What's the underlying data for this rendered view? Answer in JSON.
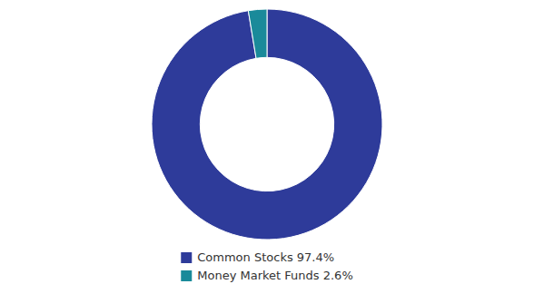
{
  "chart_data": {
    "type": "donut",
    "categories": [
      "Common Stocks 97.4%",
      "Money Market Funds 2.6%"
    ],
    "values": [
      97.4,
      2.6
    ],
    "colors": [
      "#2e3b9a",
      "#1a8a9a"
    ],
    "legend": "bottom"
  }
}
